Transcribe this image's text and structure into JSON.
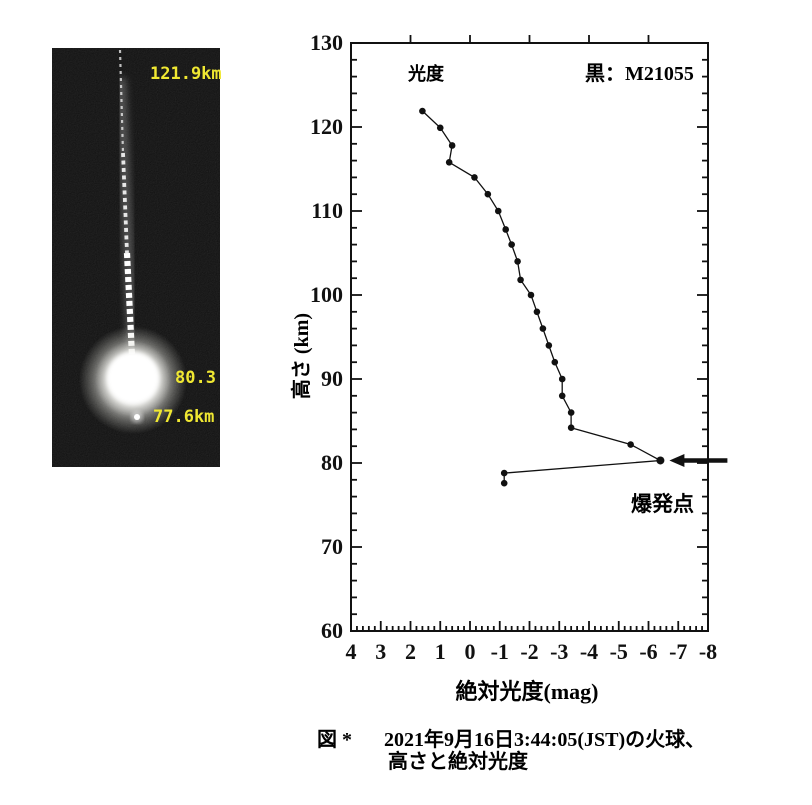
{
  "photo": {
    "labels": {
      "top_altitude": "121.9km",
      "flare_altitude": "80.3",
      "end_altitude": "77.6km"
    },
    "label_color": "#f0e832"
  },
  "chart": {
    "series_label": "光度",
    "legend": "黒：M21055",
    "explosion_label": "爆発点",
    "ylabel": "高さ (km)",
    "xlabel": "絶対光度(mag)",
    "line_color": "#111111"
  },
  "caption": {
    "prefix": "図 *",
    "line1": "2021年9月16日3:44:05(JST)の火球、",
    "line2": "高さと絶対光度"
  },
  "chart_data": {
    "type": "scatter",
    "title": "",
    "xlabel": "絶対光度(mag)",
    "ylabel": "高さ (km)",
    "xlim": [
      4,
      -8
    ],
    "ylim": [
      60,
      130
    ],
    "x_ticks": [
      4,
      3,
      2,
      1,
      0,
      -1,
      -2,
      -3,
      -4,
      -5,
      -6,
      -7,
      -8
    ],
    "x_minor_step": 0.2,
    "y_ticks": [
      60,
      70,
      80,
      90,
      100,
      110,
      120,
      130
    ],
    "y_minor_step": 2,
    "top_ticks": [
      2,
      0,
      -2,
      -4,
      -6
    ],
    "grid": false,
    "legend_position": "top-right",
    "series": [
      {
        "name": "M21055",
        "color": "#111111",
        "marker": "dot",
        "points": [
          [
            1.6,
            121.9
          ],
          [
            1.0,
            119.9
          ],
          [
            0.6,
            117.8
          ],
          [
            0.7,
            115.8
          ],
          [
            -0.15,
            114.0
          ],
          [
            -0.6,
            112.0
          ],
          [
            -0.95,
            110.0
          ],
          [
            -1.2,
            107.8
          ],
          [
            -1.4,
            106.0
          ],
          [
            -1.6,
            104.0
          ],
          [
            -1.7,
            101.8
          ],
          [
            -2.05,
            100.0
          ],
          [
            -2.25,
            98.0
          ],
          [
            -2.45,
            96.0
          ],
          [
            -2.65,
            94.0
          ],
          [
            -2.85,
            92.0
          ],
          [
            -3.1,
            90.0
          ],
          [
            -3.1,
            88.0
          ],
          [
            -3.4,
            86.0
          ],
          [
            -3.4,
            84.2
          ],
          [
            -5.4,
            82.2
          ],
          [
            -6.4,
            80.3
          ],
          [
            -1.15,
            78.8
          ],
          [
            -1.15,
            77.6
          ]
        ]
      }
    ],
    "annotations": [
      {
        "name": "explosion-arrow",
        "type": "arrow",
        "target": [
          -6.4,
          80.3
        ],
        "direction": "from-right"
      }
    ]
  }
}
